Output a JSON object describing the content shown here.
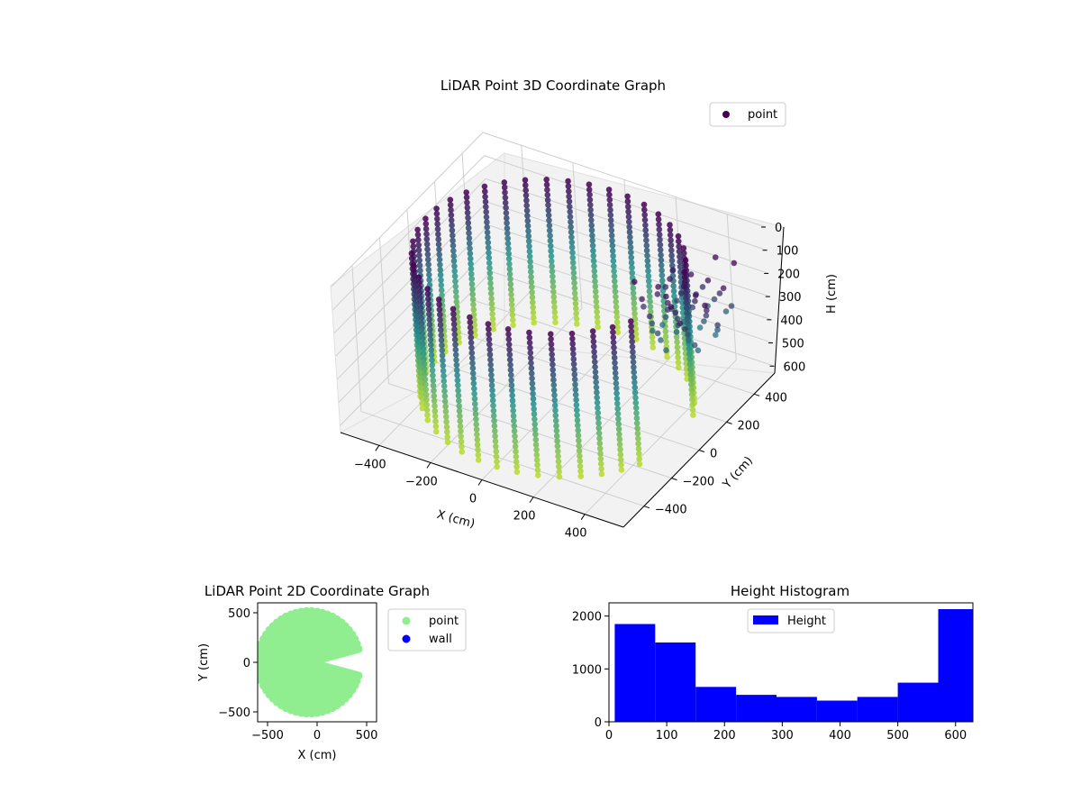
{
  "chart_data": [
    {
      "type": "scatter",
      "title": "LiDAR Point 3D Coordinate Graph",
      "xlabel": "X (cm)",
      "ylabel": "Y (cm)",
      "zlabel": "H (cm)",
      "x_ticks": [
        "−400",
        "−200",
        "0",
        "200",
        "400"
      ],
      "y_ticks": [
        "−400",
        "−200",
        "0",
        "200",
        "400"
      ],
      "z_ticks": [
        "0",
        "100",
        "200",
        "300",
        "400",
        "500",
        "600"
      ],
      "xlim": [
        -550,
        550
      ],
      "ylim": [
        -550,
        550
      ],
      "zlim": [
        0,
        630
      ],
      "z_inverted": true,
      "legend": {
        "entries": [
          "point"
        ],
        "placement": "top-right"
      },
      "colormap": "viridis",
      "colors": {
        "low": "#440154",
        "mid": "#21908d",
        "high": "#bddf26"
      },
      "series": [
        {
          "name": "point",
          "shape": "cylindrical wall scan, radius ~500 cm, heights 0–630 cm, open toward +x"
        }
      ]
    },
    {
      "type": "scatter",
      "title": "LiDAR Point 2D Coordinate Graph",
      "xlabel": "X (cm)",
      "ylabel": "Y (cm)",
      "x_ticks": [
        "−500",
        "0",
        "500"
      ],
      "y_ticks": [
        "−500",
        "0",
        "500"
      ],
      "xlim": [
        -600,
        600
      ],
      "ylim": [
        -600,
        600
      ],
      "legend": {
        "entries": [
          "point",
          "wall"
        ],
        "placement": "outside-right"
      },
      "series": [
        {
          "name": "point",
          "color": "#90ee90"
        },
        {
          "name": "wall",
          "color": "#0000ff"
        }
      ]
    },
    {
      "type": "bar",
      "title": "Height Histogram",
      "legend": {
        "entries": [
          "Height"
        ],
        "placement": "top-center"
      },
      "bar_color": "#0000ff",
      "x_ticks": [
        "0",
        "100",
        "200",
        "300",
        "400",
        "500",
        "600"
      ],
      "y_ticks": [
        "0",
        "1000",
        "2000"
      ],
      "xlim": [
        0,
        630
      ],
      "ylim": [
        0,
        2250
      ],
      "bins": [
        {
          "start": 10,
          "end": 80,
          "count": 1850
        },
        {
          "start": 80,
          "end": 150,
          "count": 1500
        },
        {
          "start": 150,
          "end": 220,
          "count": 660
        },
        {
          "start": 220,
          "end": 290,
          "count": 510
        },
        {
          "start": 290,
          "end": 360,
          "count": 470
        },
        {
          "start": 360,
          "end": 430,
          "count": 400
        },
        {
          "start": 430,
          "end": 500,
          "count": 470
        },
        {
          "start": 500,
          "end": 570,
          "count": 740
        },
        {
          "start": 570,
          "end": 630,
          "count": 2130
        }
      ]
    }
  ]
}
